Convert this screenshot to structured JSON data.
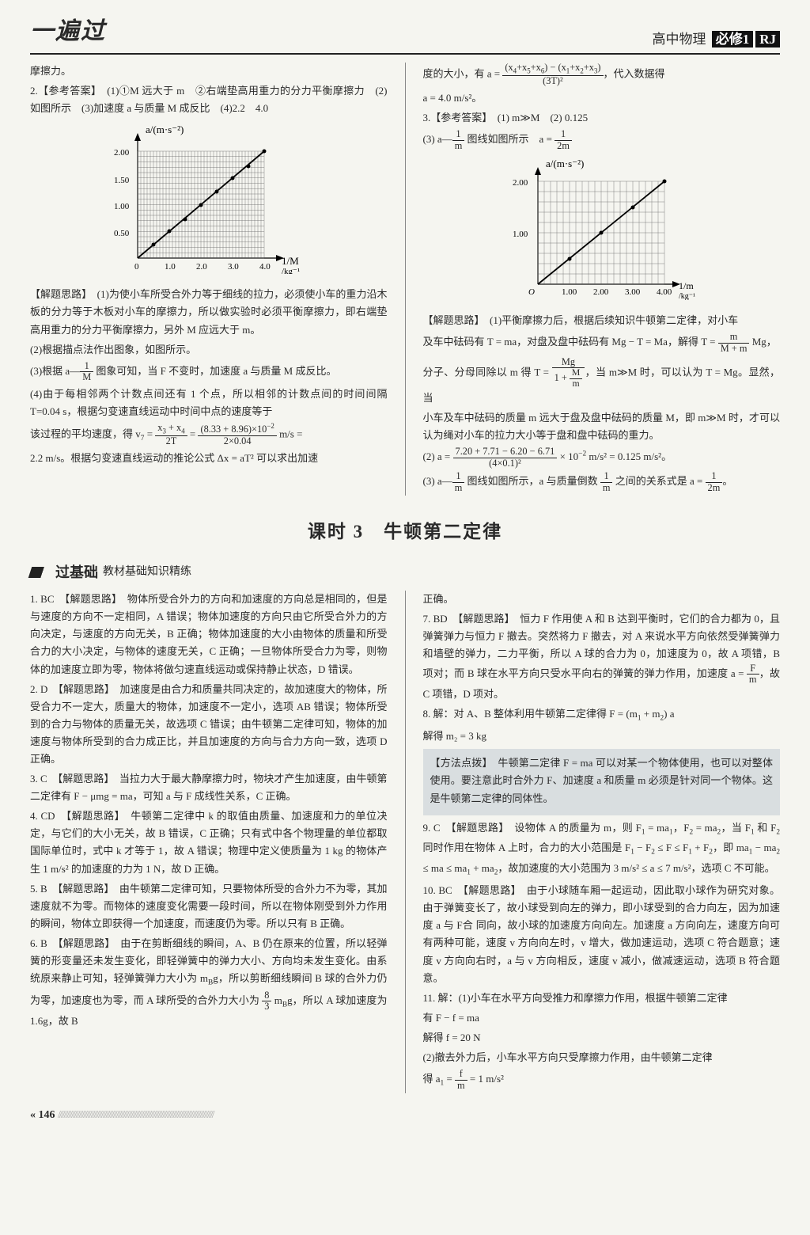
{
  "header": {
    "logo": "一遍过",
    "subject": "高中物理",
    "book": "必修1",
    "edition": "RJ"
  },
  "top": {
    "left": {
      "p1": "摩擦力。",
      "p2a": "2.【参考答案】　(1)①M 远大于 m　②右端垫高用重力的分力平衡摩擦力　(2)如图所示　(3)加速度 a 与质量 M 成反比　(4)2.2　4.0",
      "chart": {
        "type": "line",
        "ylabel": "a/(m·s⁻²)",
        "xlabel_html": "→ 1/M /kg⁻¹",
        "xlim": [
          0,
          4.0
        ],
        "ylim": [
          0,
          2.0
        ],
        "xticks": [
          0,
          1.0,
          2.0,
          3.0,
          4.0
        ],
        "yticks": [
          0.5,
          1.0,
          1.5,
          2.0
        ],
        "grid_step": 0.1,
        "points": [
          [
            0.5,
            0.25
          ],
          [
            1.0,
            0.5
          ],
          [
            1.5,
            0.72
          ],
          [
            2.0,
            1.0
          ],
          [
            2.5,
            1.25
          ],
          [
            3.0,
            1.5
          ],
          [
            3.5,
            1.72
          ],
          [
            4.0,
            2.0
          ]
        ],
        "line_color": "#000000",
        "grid_color": "#444444",
        "bg_color": "#f5f5f0",
        "marker": "circle",
        "marker_size": 2.5
      },
      "analysis1": "【解题思路】　(1)为使小车所受合外力等于细线的拉力，必须使小车的重力沿木板的分力等于木板对小车的摩擦力，所以做实验时必须平衡摩擦力，即右端垫高用重力的分力平衡摩擦力，另外 M 应远大于 m。",
      "p3": "(2)根据描点法作出图象，如图所示。",
      "p4_html": "(3)根据 a—<span class='frac'><span class='n'>1</span><span class='d'>M</span></span> 图象可知，当 F 不变时，加速度 a 与质量 M 成反比。",
      "p5": "(4)由于每相邻两个计数点间还有 1 个点，所以相邻的计数点间的时间间隔 T=0.04 s，根据匀变速直线运动中时间中点的速度等于",
      "v7_html": "该过程的平均速度，得 v<span class='sub'>7</span> = <span class='frac'><span class='n'>x<span class='sub'>3</span> + x<span class='sub'>4</span></span><span class='d'>2T</span></span> = <span class='frac'><span class='n'>(8.33 + 8.96)×10<span class='sup'>−2</span></span><span class='d'>2×0.04</span></span> m/s =",
      "p7": "2.2 m/s。根据匀变速直线运动的推论公式 Δx = aT² 可以求出加速"
    },
    "right": {
      "aeq_html": "度的大小，有 a = <span class='frac'><span class='n'>(x<span class='sub'>4</span>+x<span class='sub'>5</span>+x<span class='sub'>6</span>) − (x<span class='sub'>1</span>+x<span class='sub'>2</span>+x<span class='sub'>3</span>)</span><span class='d'>(3T)²</span></span>，代入数据得",
      "aval": "a = 4.0 m/s²。",
      "p3ans": "3.【参考答案】　(1) m≫M　(2) 0.125",
      "p3c_html": "(3) a—<span class='frac'><span class='n'>1</span><span class='d'>m</span></span> 图线如图所示　a = <span class='frac'><span class='n'>1</span><span class='d'>2m</span></span>",
      "chart": {
        "type": "line",
        "ylabel": "a/(m·s⁻²)",
        "xlabel_html": "→ 1/m /kg⁻¹",
        "xlim": [
          0,
          4.0
        ],
        "ylim": [
          0,
          2.0
        ],
        "xticks": [
          0,
          1.0,
          2.0,
          3.0,
          4.0
        ],
        "yticks": [
          1.0,
          2.0
        ],
        "grid_step": 0.2,
        "points": [
          [
            1.0,
            0.5
          ],
          [
            2.0,
            1.0
          ],
          [
            3.0,
            1.5
          ],
          [
            4.0,
            2.0
          ]
        ],
        "line_color": "#000000",
        "grid_color": "#444444",
        "bg_color": "#f5f5f0",
        "marker": "circle",
        "marker_size": 2.5
      },
      "analysis": "【解题思路】　(1)平衡摩擦力后，根据后续知识牛顿第二定律，对小车",
      "eq1_html": "及车中砝码有 T = ma，对盘及盘中砝码有 Mg − T = Ma，解得 T = <span class='frac'><span class='n'>m</span><span class='d'>M + m</span></span> Mg，",
      "eq2_html": "分子、分母同除以 m 得 T = <span class='frac'><span class='n'>Mg</span><span class='d'>1 + <span class='frac'><span class='n'>M</span><span class='d'>m</span></span></span></span>，当 m≫M 时，可以认为 T = Mg。显然，当",
      "p7": "小车及车中砝码的质量 m 远大于盘及盘中砝码的质量 M，即 m≫M 时，才可以认为绳对小车的拉力大小等于盘和盘中砝码的重力。",
      "eq3_html": "(2) a = <span class='frac'><span class='n'>7.20 + 7.71 − 6.20 − 6.71</span><span class='d'>(4×0.1)²</span></span> × 10<span class='sup'>−2</span> m/s² = 0.125 m/s²。",
      "eq4_html": "(3) a—<span class='frac'><span class='n'>1</span><span class='d'>m</span></span> 图线如图所示，a 与质量倒数 <span class='frac'><span class='n'>1</span><span class='d'>m</span></span> 之间的关系式是 a = <span class='frac'><span class='n'>1</span><span class='d'>2m</span></span>。"
    }
  },
  "section_title": "课时 3　牛顿第二定律",
  "subheader": {
    "t1": "过基础",
    "t2": "教材基础知识精练"
  },
  "body": {
    "left": {
      "q1": "1. BC　【解题思路】　物体所受合外力的方向和加速度的方向总是相同的，但是与速度的方向不一定相同，A 错误；物体加速度的方向只由它所受合外力的方向决定，与速度的方向无关，B 正确；物体加速度的大小由物体的质量和所受合力的大小决定，与物体的速度无关，C 正确；一旦物体所受合力为零，则物体的加速度立即为零，物体将做匀速直线运动或保持静止状态，D 错误。",
      "q2": "2. D　【解题思路】　加速度是由合力和质量共同决定的，故加速度大的物体，所受合力不一定大，质量大的物体，加速度不一定小，选项 AB 错误；物体所受到的合力与物体的质量无关，故选项 C 错误；由牛顿第二定律可知，物体的加速度与物体所受到的合力成正比，并且加速度的方向与合力方向一致，选项 D 正确。",
      "q3": "3. C　【解题思路】　当拉力大于最大静摩擦力时，物块才产生加速度，由牛顿第二定律有 F − μmg = ma，可知 a 与 F 成线性关系，C 正确。",
      "q4": "4. CD　【解题思路】　牛顿第二定律中 k 的取值由质量、加速度和力的单位决定，与它们的大小无关，故 B 错误，C 正确；只有式中各个物理量的单位都取国际单位时，式中 k 才等于 1，故 A 错误；物理中定义使质量为 1 kg 的物体产生 1 m/s² 的加速度的力为 1 N，故 D 正确。",
      "q5": "5. B　【解题思路】　由牛顿第二定律可知，只要物体所受的合外力不为零，其加速度就不为零。而物体的速度变化需要一段时间，所以在物体刚受到外力作用的瞬间，物体立即获得一个加速度，而速度仍为零。所以只有 B 正确。",
      "q6_html": "6. B　【解题思路】　由于在剪断细线的瞬间，A、B 仍在原来的位置，所以轻弹簧的形变量还未发生变化，即轻弹簧中的弹力大小、方向均未发生变化。由系统原来静止可知，轻弹簧弹力大小为 m<span class='sub'>B</span>g，所以剪断细线瞬间 B 球的合外力仍为零，加速度也为零，而 A 球所受的合外力大小为 <span class='frac'><span class='n'>8</span><span class='d'>3</span></span> m<span class='sub'>B</span>g，所以 A 球加速度为 1.6g，故 B"
    },
    "right": {
      "p0": "正确。",
      "q7_html": "7. BD　【解题思路】　恒力 F 作用使 A 和 B 达到平衡时，它们的合力都为 0，且弹簧弹力与恒力 F 撤去。突然将力 F 撤去，对 A 来说水平方向依然受弹簧弹力和墙壁的弹力，二力平衡，所以 A 球的合力为 0，加速度为 0，故 A 项错，B 项对；而 B 球在水平方向只受水平向右的弹簧的弹力作用，加速度 a = <span class='frac'><span class='n'>F</span><span class='d'>m</span></span>，故 C 项错，D 项对。",
      "q8a_html": "8. 解：对 A、B 整体利用牛顿第二定律得 F = (m<span class='sub'>1</span> + m<span class='sub'>2</span>) a",
      "q8b": "解得 m₂ = 3 kg",
      "method": "【方法点拨】　牛顿第二定律 F = ma 可以对某一个物体使用，也可以对整体使用。要注意此时合外力 F、加速度 a 和质量 m 必须是针对同一个物体。这是牛顿第二定律的同体性。",
      "q9_html": "9. C　【解题思路】　设物体 A 的质量为 m，则 F<span class='sub'>1</span> = ma<span class='sub'>1</span>，F<span class='sub'>2</span> = ma<span class='sub'>2</span>，当 F<span class='sub'>1</span> 和 F<span class='sub'>2</span> 同时作用在物体 A 上时，合力的大小范围是 F<span class='sub'>1</span> − F<span class='sub'>2</span> ≤ F ≤ F<span class='sub'>1</span> + F<span class='sub'>2</span>，即 ma<span class='sub'>1</span> − ma<span class='sub'>2</span> ≤ ma ≤ ma<span class='sub'>1</span> + ma<span class='sub'>2</span>，故加速度的大小范围为 3 m/s² ≤ a ≤ 7 m/s²，选项 C 不可能。",
      "q10": "10. BC　【解题思路】　由于小球随车厢一起运动，因此取小球作为研究对象。由于弹簧变长了，故小球受到向左的弹力，即小球受到的合力向左，因为加速度 a 与 F合 同向，故小球的加速度方向向左。加速度 a 方向向左，速度方向可有两种可能，速度 v 方向向左时，v 增大，做加速运动，选项 C 符合题意；速度 v 方向向右时，a 与 v 方向相反，速度 v 减小，做减速运动，选项 B 符合题意。",
      "q11a": "11. 解：(1)小车在水平方向受推力和摩擦力作用，根据牛顿第二定律",
      "q11b": "有 F − f = ma",
      "q11c": "解得 f = 20 N",
      "q11d": "(2)撤去外力后，小车水平方向只受摩擦力作用，由牛顿第二定律",
      "q11e_html": "得 a<span class='sub'>1</span> = <span class='frac'><span class='n'>f</span><span class='d'>m</span></span> = 1 m/s²"
    }
  },
  "page": "« 146",
  "hatch": "////////////////////////////////////////////////////////////////////////////////////////////////////////"
}
